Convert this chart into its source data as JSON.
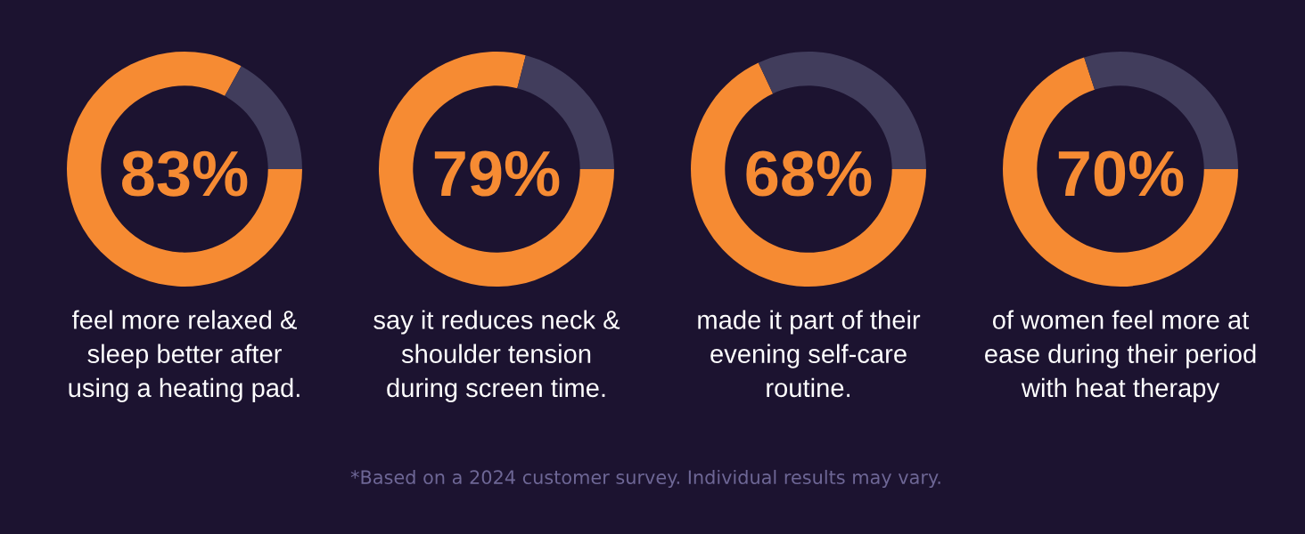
{
  "chart_data": [
    {
      "type": "donut",
      "title": "feel more relaxed &\nsleep better after\nusing a heating pad.",
      "categories": [
        null,
        null
      ],
      "values": [
        83,
        17
      ],
      "colors": [
        "#f68b33",
        "#413d5c"
      ],
      "value_labels": [
        "83%",
        null
      ],
      "annotations": [
        "*Based on a 2024 customer survey. Individual results may vary."
      ]
    },
    {
      "type": "donut",
      "title": "say it reduces neck &\nshoulder tension\nduring screen time.",
      "categories": [
        null,
        null
      ],
      "values": [
        79,
        21
      ],
      "colors": [
        "#f68b33",
        "#413d5c"
      ],
      "value_labels": [
        "79%",
        null
      ]
    },
    {
      "type": "donut",
      "title": "made it part of their\nevening self-care\nroutine.",
      "categories": [
        null,
        null
      ],
      "values": [
        68,
        32
      ],
      "colors": [
        "#f68b33",
        "#413d5c"
      ],
      "value_labels": [
        "68%",
        null
      ]
    },
    {
      "type": "donut",
      "title": "of women feel more at\nease during their period\nwith heat therapy",
      "categories": [
        null,
        null
      ],
      "values": [
        70,
        30
      ],
      "colors": [
        "#f68b33",
        "#413d5c"
      ],
      "value_labels": [
        "70%",
        null
      ]
    }
  ]
}
